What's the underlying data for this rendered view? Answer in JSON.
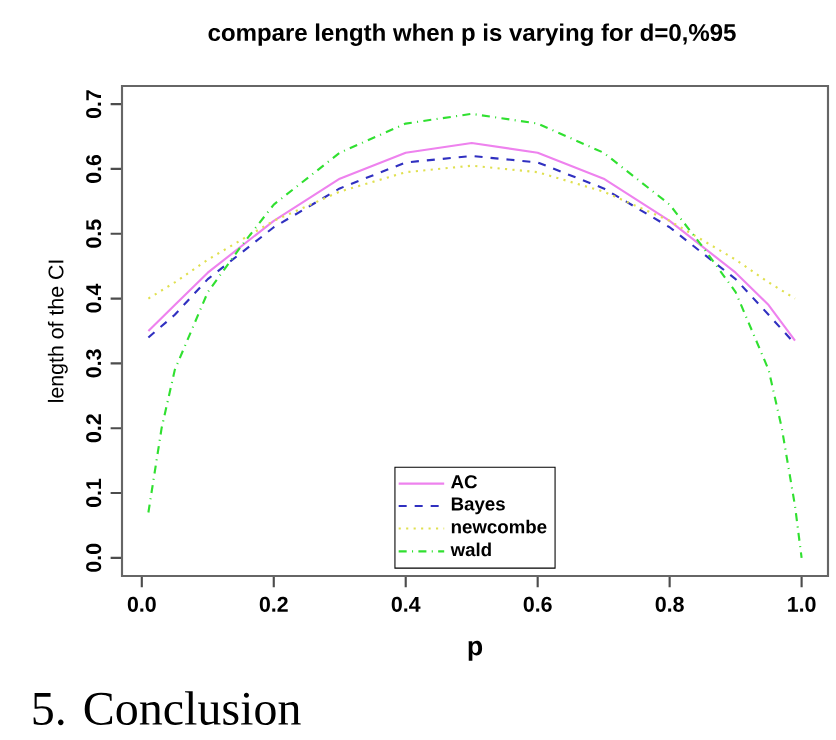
{
  "chart_data": {
    "type": "line",
    "title": "compare length when p is varying for d=0,%95",
    "xlabel": "p",
    "ylabel": "length of the CI",
    "xlim": [
      -0.03,
      1.04
    ],
    "ylim": [
      -0.028,
      0.728
    ],
    "xticks": [
      {
        "value": 0,
        "label": "0.0"
      },
      0.2,
      0.4,
      0.6,
      0.8,
      {
        "value": 1,
        "label": "1.0"
      }
    ],
    "yticks": [
      {
        "value": 0,
        "label": "0.0"
      },
      0.1,
      0.2,
      0.3,
      0.4,
      0.5,
      0.6,
      0.7
    ],
    "legend": "bottom",
    "grid": false,
    "annotations": [
      "5. Conclusion"
    ],
    "series": [
      {
        "name": "AC",
        "color": "#ee82ee",
        "line_style": "solid",
        "x": [
          0.01,
          0.05,
          0.1,
          0.2,
          0.3,
          0.4,
          0.5,
          0.6,
          0.7,
          0.8,
          0.9,
          0.95,
          0.99
        ],
        "values": [
          0.35,
          0.39,
          0.44,
          0.52,
          0.585,
          0.625,
          0.64,
          0.625,
          0.585,
          0.52,
          0.44,
          0.39,
          0.335
        ]
      },
      {
        "name": "Bayes",
        "color": "#3030c0",
        "line_style": "dashed",
        "x": [
          0.01,
          0.05,
          0.1,
          0.2,
          0.3,
          0.4,
          0.5,
          0.6,
          0.7,
          0.8,
          0.9,
          0.95,
          0.99
        ],
        "values": [
          0.34,
          0.375,
          0.43,
          0.51,
          0.57,
          0.61,
          0.62,
          0.61,
          0.57,
          0.51,
          0.43,
          0.375,
          0.33
        ]
      },
      {
        "name": "newcombe",
        "color": "#e0e050",
        "line_style": "dotted",
        "x": [
          0.01,
          0.05,
          0.1,
          0.2,
          0.3,
          0.4,
          0.5,
          0.6,
          0.7,
          0.8,
          0.9,
          0.95,
          0.99
        ],
        "values": [
          0.4,
          0.425,
          0.46,
          0.52,
          0.565,
          0.595,
          0.605,
          0.595,
          0.565,
          0.52,
          0.46,
          0.425,
          0.4
        ]
      },
      {
        "name": "wald",
        "color": "#30e030",
        "line_style": "dashdot",
        "x": [
          0.01,
          0.03,
          0.05,
          0.1,
          0.15,
          0.2,
          0.3,
          0.4,
          0.5,
          0.6,
          0.7,
          0.8,
          0.85,
          0.9,
          0.95,
          0.97,
          0.99,
          1.0
        ],
        "values": [
          0.07,
          0.2,
          0.29,
          0.41,
          0.48,
          0.545,
          0.625,
          0.67,
          0.685,
          0.67,
          0.625,
          0.545,
          0.48,
          0.41,
          0.29,
          0.2,
          0.08,
          0.0
        ]
      }
    ]
  }
}
